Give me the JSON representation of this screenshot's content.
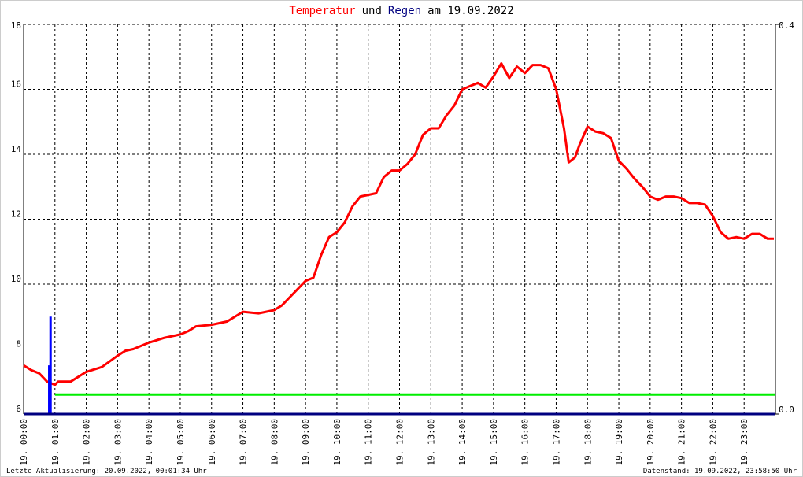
{
  "chart_data": {
    "type": "line",
    "title_parts": [
      {
        "text": "Temperatur",
        "color": "#ff0000"
      },
      {
        "text": "und",
        "color": "#000000"
      },
      {
        "text": "Regen",
        "color": "#000080"
      },
      {
        "text": "am 19.09.2022",
        "color": "#000000"
      }
    ],
    "footer_left": "Letzte Aktualisierung: 20.09.2022, 00:01:34 Uhr",
    "footer_right": "Datenstand: 19.09.2022, 23:58:50 Uhr",
    "xlim": [
      0,
      24
    ],
    "xticks": [
      {
        "value": 0,
        "label": "19. 00:00"
      },
      {
        "value": 1,
        "label": "19. 01:00"
      },
      {
        "value": 2,
        "label": "19. 02:00"
      },
      {
        "value": 3,
        "label": "19. 03:00"
      },
      {
        "value": 4,
        "label": "19. 04:00"
      },
      {
        "value": 5,
        "label": "19. 05:00"
      },
      {
        "value": 6,
        "label": "19. 06:00"
      },
      {
        "value": 7,
        "label": "19. 07:00"
      },
      {
        "value": 8,
        "label": "19. 08:00"
      },
      {
        "value": 9,
        "label": "19. 09:00"
      },
      {
        "value": 10,
        "label": "19. 10:00"
      },
      {
        "value": 11,
        "label": "19. 11:00"
      },
      {
        "value": 12,
        "label": "19. 12:00"
      },
      {
        "value": 13,
        "label": "19. 13:00"
      },
      {
        "value": 14,
        "label": "19. 14:00"
      },
      {
        "value": 15,
        "label": "19. 15:00"
      },
      {
        "value": 16,
        "label": "19. 16:00"
      },
      {
        "value": 17,
        "label": "19. 17:00"
      },
      {
        "value": 18,
        "label": "19. 18:00"
      },
      {
        "value": 19,
        "label": "19. 19:00"
      },
      {
        "value": 20,
        "label": "19. 20:00"
      },
      {
        "value": 21,
        "label": "19. 21:00"
      },
      {
        "value": 22,
        "label": "19. 22:00"
      },
      {
        "value": 23,
        "label": "19. 23:00"
      }
    ],
    "ylim": [
      6,
      18
    ],
    "yticks": [
      6,
      8,
      10,
      12,
      14,
      16,
      18
    ],
    "y2lim": [
      0,
      0.4
    ],
    "y2ticks": [
      {
        "value": 0,
        "label": "0.0"
      },
      {
        "value": 0.4,
        "label": "0.4"
      }
    ],
    "grid": true,
    "series": [
      {
        "name": "Temperatur",
        "color": "#ff0000",
        "type": "line",
        "x": [
          0,
          0.25,
          0.5,
          0.75,
          1,
          1.1,
          1.5,
          2,
          2.5,
          3,
          3.25,
          3.5,
          4,
          4.5,
          5,
          5.25,
          5.5,
          6,
          6.5,
          7,
          7.5,
          8,
          8.25,
          8.5,
          9,
          9.25,
          9.5,
          9.75,
          10,
          10.25,
          10.5,
          10.75,
          11,
          11.25,
          11.5,
          11.75,
          12,
          12.25,
          12.5,
          12.75,
          13,
          13.25,
          13.5,
          13.75,
          14,
          14.25,
          14.5,
          14.75,
          15,
          15.25,
          15.5,
          15.75,
          16,
          16.25,
          16.5,
          16.75,
          17,
          17.25,
          17.4,
          17.6,
          17.75,
          18,
          18.25,
          18.5,
          18.75,
          19,
          19.25,
          19.5,
          19.75,
          20,
          20.25,
          20.5,
          20.75,
          21,
          21.25,
          21.5,
          21.75,
          22,
          22.25,
          22.5,
          22.75,
          23,
          23.25,
          23.5,
          23.75,
          23.95
        ],
        "values": [
          7.5,
          7.35,
          7.25,
          7.0,
          6.9,
          7.0,
          7.0,
          7.3,
          7.45,
          7.8,
          7.95,
          8.0,
          8.2,
          8.35,
          8.45,
          8.55,
          8.7,
          8.75,
          8.85,
          9.15,
          9.1,
          9.2,
          9.35,
          9.6,
          10.1,
          10.2,
          10.9,
          11.45,
          11.6,
          11.9,
          12.4,
          12.7,
          12.75,
          12.8,
          13.3,
          13.5,
          13.5,
          13.7,
          14.0,
          14.6,
          14.8,
          14.8,
          15.2,
          15.5,
          16.0,
          16.1,
          16.2,
          16.05,
          16.4,
          16.8,
          16.35,
          16.7,
          16.5,
          16.75,
          16.75,
          16.65,
          16.0,
          14.8,
          13.75,
          13.9,
          14.3,
          14.85,
          14.7,
          14.65,
          14.5,
          13.8,
          13.55,
          13.25,
          13.0,
          12.7,
          12.6,
          12.7,
          12.7,
          12.65,
          12.5,
          12.5,
          12.45,
          12.1,
          11.6,
          11.4,
          11.45,
          11.4,
          11.55,
          11.55,
          11.4,
          11.4
        ]
      },
      {
        "name": "Regen",
        "color": "#0000ff",
        "type": "bar",
        "axis": "y2",
        "x": [
          0.83,
          0.86
        ],
        "values": [
          0.05,
          0.1
        ]
      },
      {
        "color": "#00ee00",
        "type": "line",
        "axis": "y2",
        "x": [
          1.0,
          24
        ],
        "values": [
          0.02,
          0.02
        ]
      }
    ]
  }
}
